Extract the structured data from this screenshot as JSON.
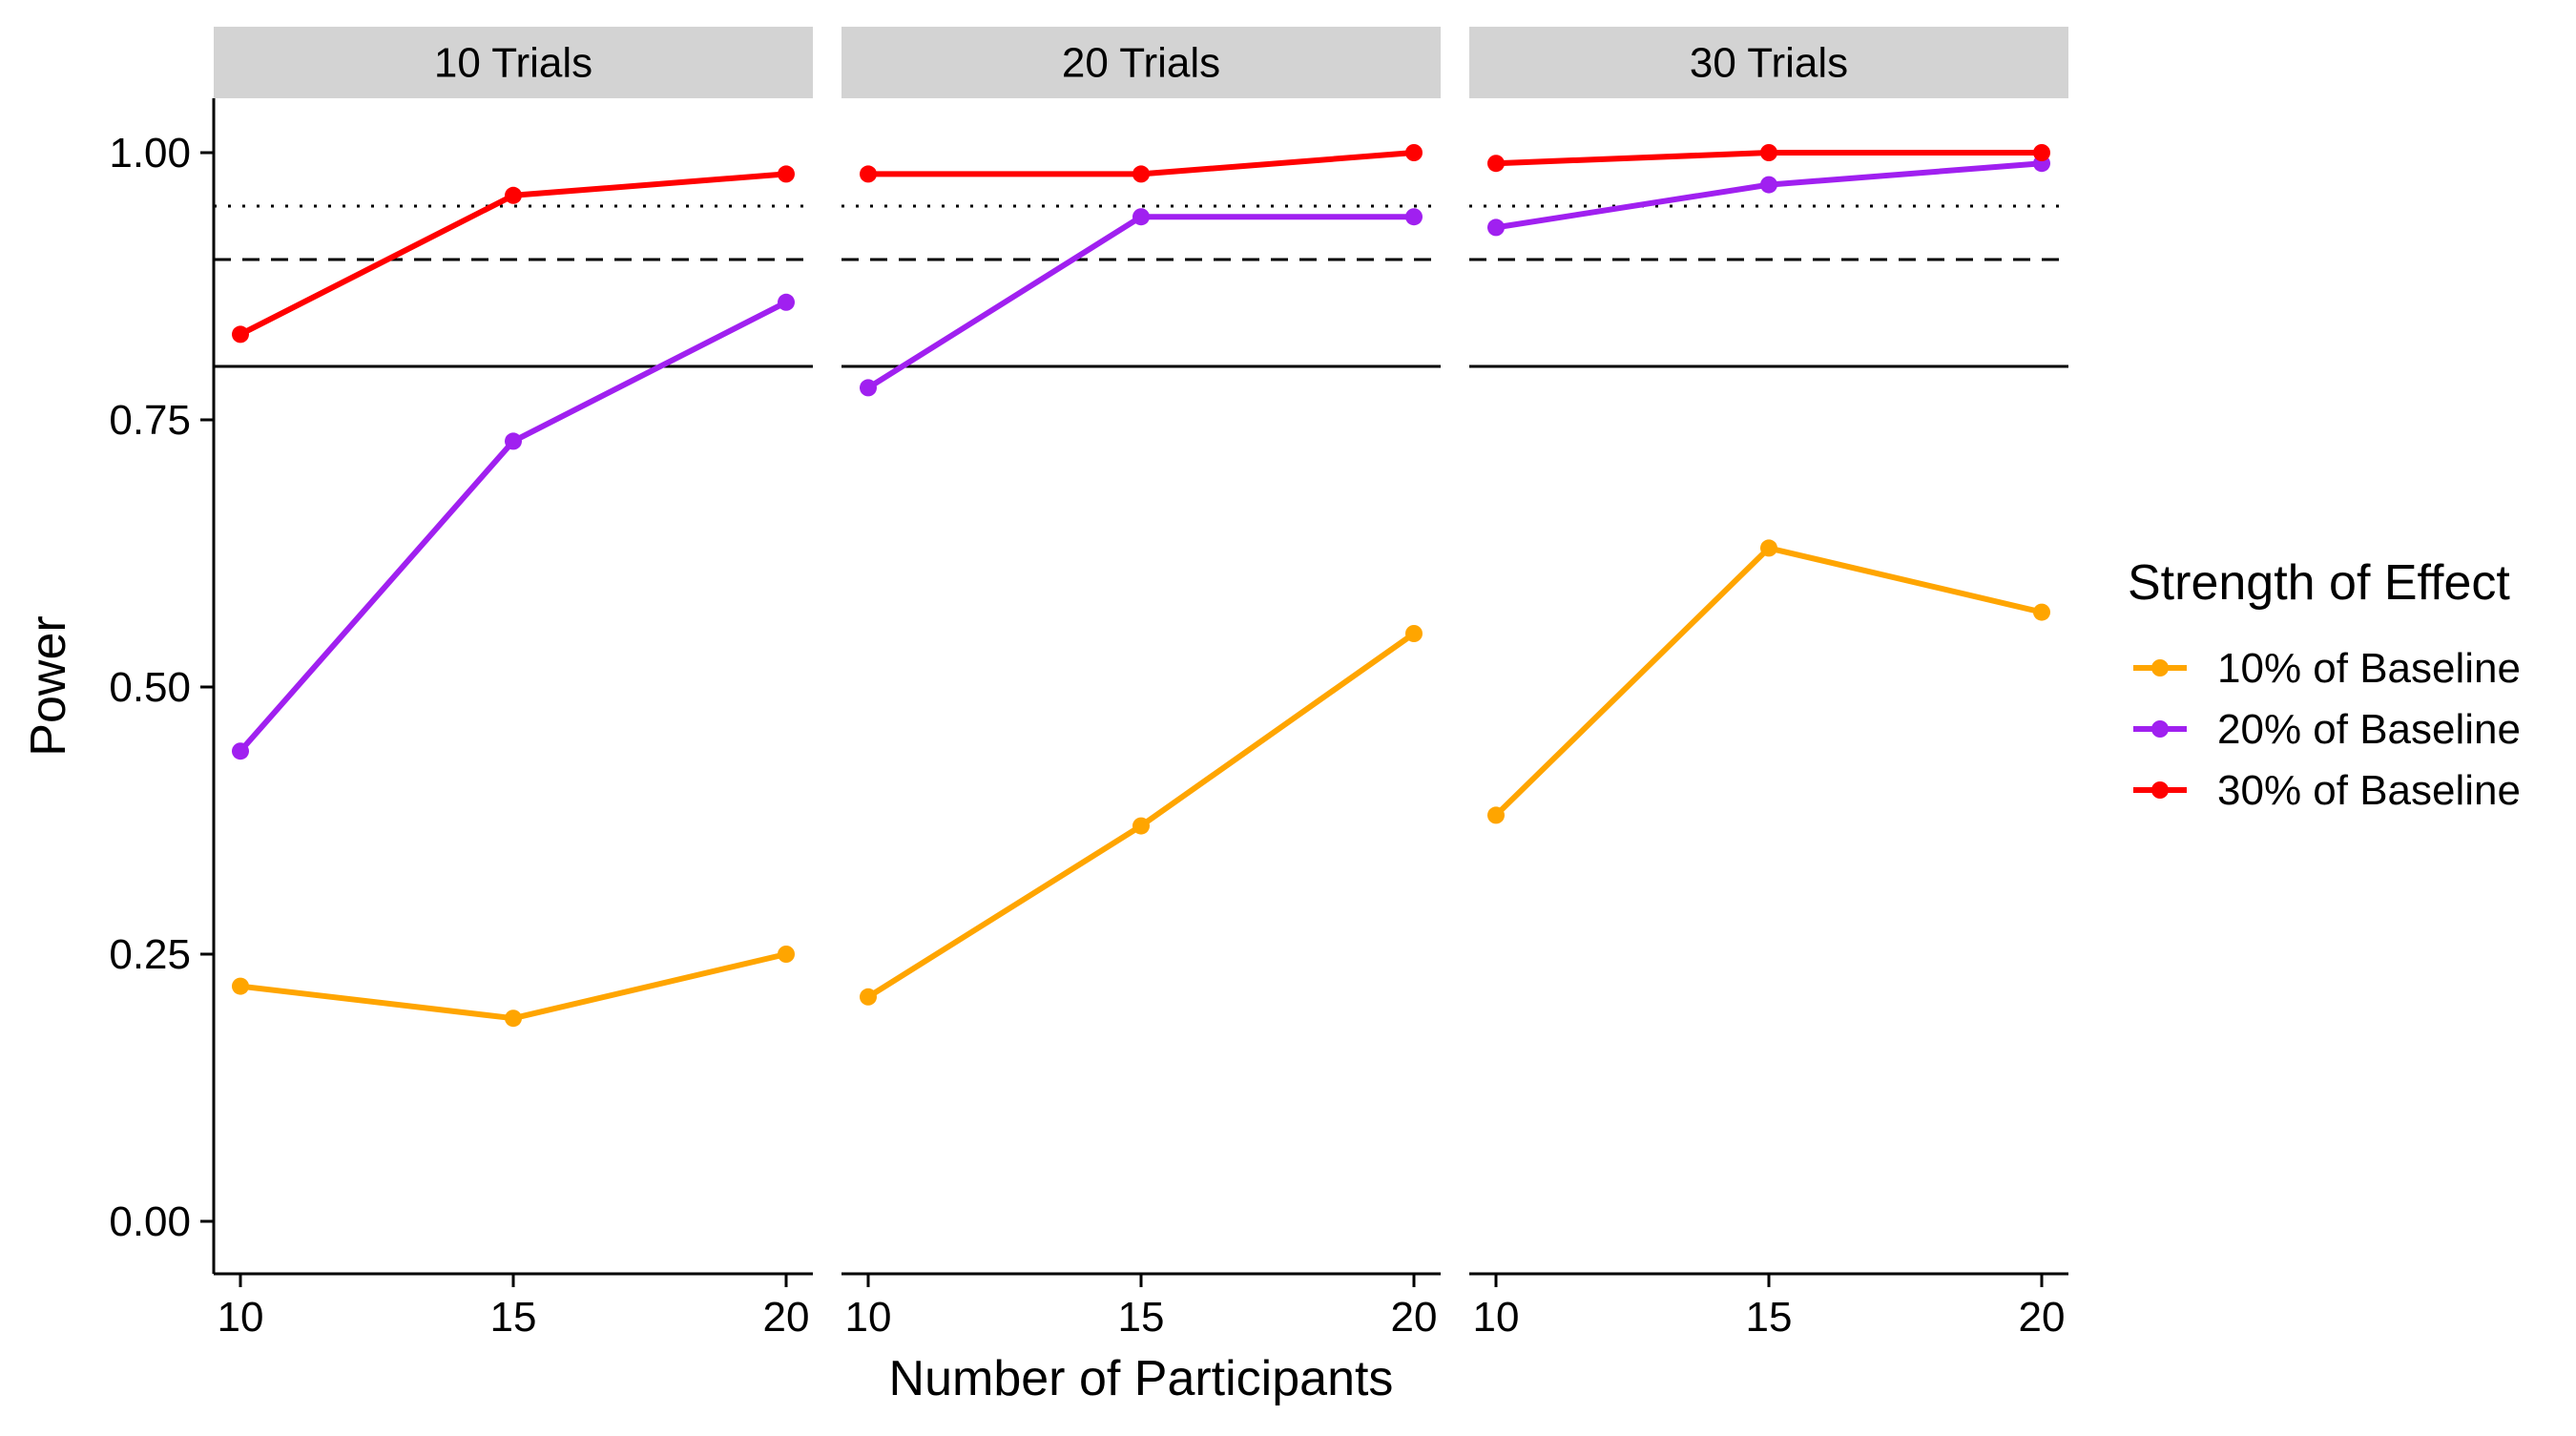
{
  "chart_data": {
    "type": "line",
    "facet_titles": [
      "10 Trials",
      "20 Trials",
      "30 Trials"
    ],
    "x": [
      10,
      15,
      20
    ],
    "x_ticks": [
      "10",
      "15",
      "20"
    ],
    "xlabel": "Number of Participants",
    "ylabel": "Power",
    "ylim": [
      -0.05,
      1.05
    ],
    "y_ticks": [
      "0.00",
      "0.25",
      "0.50",
      "0.75",
      "1.00"
    ],
    "y_tick_values": [
      0,
      0.25,
      0.5,
      0.75,
      1.0
    ],
    "reference_lines": [
      {
        "value": 0.8,
        "style": "solid"
      },
      {
        "value": 0.9,
        "style": "dashed"
      },
      {
        "value": 0.95,
        "style": "dotted"
      }
    ],
    "legend_title": "Strength of Effect",
    "legend_position": "right",
    "grid": false,
    "series": [
      {
        "name": "10% of Baseline",
        "color": "#FFA500",
        "facets": [
          [
            0.22,
            0.19,
            0.25
          ],
          [
            0.21,
            0.37,
            0.55
          ],
          [
            0.38,
            0.63,
            0.57
          ]
        ]
      },
      {
        "name": "20% of Baseline",
        "color": "#A020F0",
        "facets": [
          [
            0.44,
            0.73,
            0.86
          ],
          [
            0.78,
            0.94,
            0.94
          ],
          [
            0.93,
            0.97,
            0.99
          ]
        ]
      },
      {
        "name": "30% of Baseline",
        "color": "#FF0000",
        "facets": [
          [
            0.83,
            0.96,
            0.98
          ],
          [
            0.98,
            0.98,
            1.0
          ],
          [
            0.99,
            1.0,
            1.0
          ]
        ]
      }
    ]
  }
}
